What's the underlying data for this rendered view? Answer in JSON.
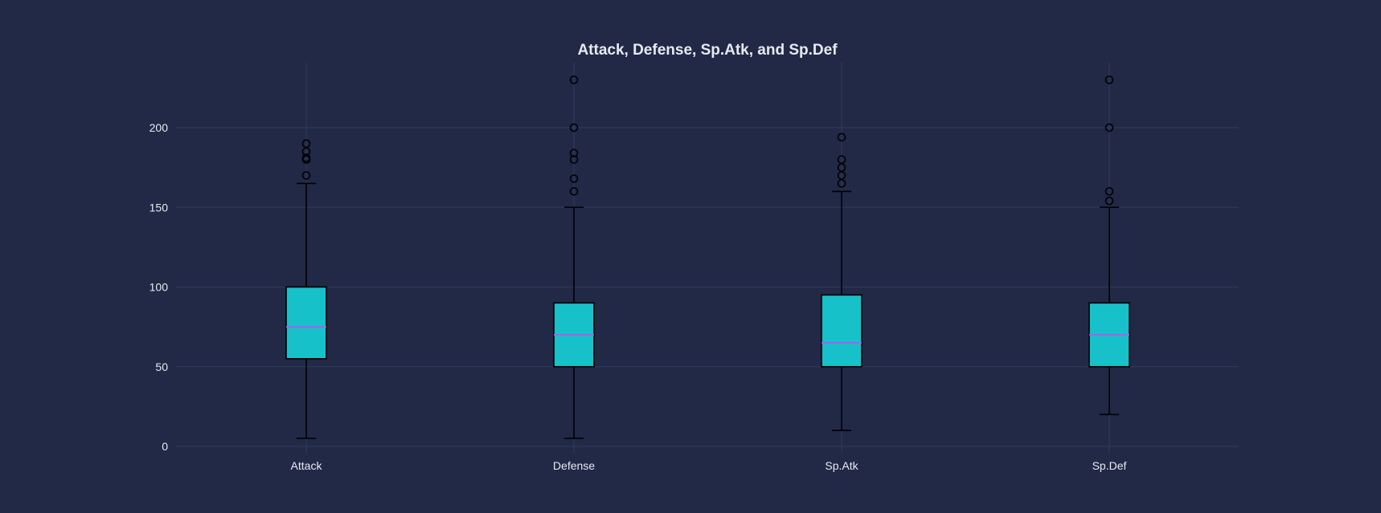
{
  "chart_data": {
    "type": "box",
    "title": "Attack, Defense, Sp.Atk, and Sp.Def",
    "xlabel": "",
    "ylabel": "",
    "ylim": [
      -5,
      240
    ],
    "yticks": [
      0,
      50,
      100,
      150,
      200
    ],
    "grid": true,
    "legend": "none",
    "categories": [
      "Attack",
      "Defense",
      "Sp.Atk",
      "Sp.Def"
    ],
    "boxes": [
      {
        "label": "Attack",
        "whisker_low": 5,
        "q1": 55,
        "median": 75,
        "q3": 100,
        "whisker_high": 165,
        "outliers": [
          170,
          180,
          181,
          185,
          190
        ]
      },
      {
        "label": "Defense",
        "whisker_low": 5,
        "q1": 50,
        "median": 70,
        "q3": 90,
        "whisker_high": 150,
        "outliers": [
          160,
          168,
          180,
          184,
          200,
          230
        ]
      },
      {
        "label": "Sp.Atk",
        "whisker_low": 10,
        "q1": 50,
        "median": 65,
        "q3": 95,
        "whisker_high": 160,
        "outliers": [
          165,
          170,
          175,
          180,
          194
        ]
      },
      {
        "label": "Sp.Def",
        "whisker_low": 20,
        "q1": 50,
        "median": 70,
        "q3": 90,
        "whisker_high": 150,
        "outliers": [
          154,
          160,
          200,
          230
        ]
      }
    ],
    "colors": {
      "background": "#212946",
      "box_fill": "#17c1c9",
      "median": "#a862ea",
      "outline": "#000000",
      "grid": "#2f3a5c",
      "text": "#e8eaf0"
    }
  }
}
